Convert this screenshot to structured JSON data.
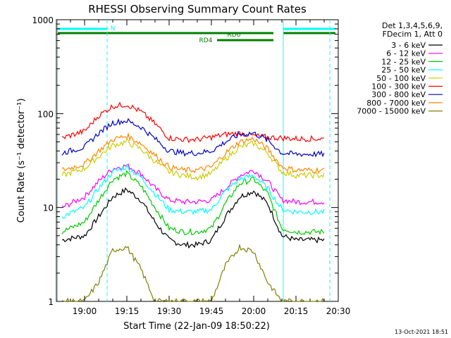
{
  "chart_data": {
    "type": "line",
    "title": "RHESSI Observing Summary Count Rates",
    "xlabel": "Start Time (22-Jan-09 18:50:22)",
    "ylabel": "Count Rate (s⁻¹ detector⁻¹)",
    "yscale": "log",
    "ylim": [
      1,
      1000
    ],
    "xlim": [
      "18:50",
      "20:30"
    ],
    "xticks": [
      "19:00",
      "19:15",
      "19:30",
      "19:45",
      "20:00",
      "20:15",
      "20:30"
    ],
    "yticks": [
      "1",
      "10",
      "100",
      "1000"
    ],
    "legend": {
      "header1": "Det 1,3,4,5,6,9,",
      "header2": "FDecim 1, Att 0"
    },
    "series": [
      {
        "name": "3 - 6 keV",
        "color": "#000000",
        "x": [
          "18:52",
          "19:00",
          "19:05",
          "19:10",
          "19:15",
          "19:20",
          "19:25",
          "19:30",
          "19:35",
          "19:40",
          "19:45",
          "19:50",
          "19:55",
          "20:00",
          "20:05",
          "20:10",
          "20:15",
          "20:20",
          "20:25"
        ],
        "y": [
          4.5,
          5,
          8,
          13,
          15.5,
          12,
          7,
          4.5,
          4,
          4,
          4.5,
          8,
          13,
          15,
          11,
          5,
          4.5,
          4.5,
          4.5
        ]
      },
      {
        "name": "6 - 12 keV",
        "color": "#ff00ff",
        "x": [
          "18:52",
          "19:00",
          "19:05",
          "19:10",
          "19:15",
          "19:20",
          "19:25",
          "19:30",
          "19:35",
          "19:40",
          "19:45",
          "19:50",
          "19:55",
          "20:00",
          "20:05",
          "20:10",
          "20:15",
          "20:20",
          "20:25"
        ],
        "y": [
          10,
          13,
          19,
          26,
          28,
          23,
          16,
          12,
          11.5,
          11.5,
          12,
          16,
          22,
          25,
          19,
          12,
          11.5,
          11.5,
          11.5
        ]
      },
      {
        "name": "12 - 25 keV",
        "color": "#00cc00",
        "x": [
          "18:52",
          "19:00",
          "19:05",
          "19:10",
          "19:15",
          "19:20",
          "19:25",
          "19:30",
          "19:35",
          "19:40",
          "19:45",
          "19:50",
          "19:55",
          "20:00",
          "20:05",
          "20:10",
          "20:15",
          "20:20",
          "20:25"
        ],
        "y": [
          5.5,
          7,
          12,
          20,
          23,
          17,
          10,
          6,
          5.5,
          5.5,
          6,
          11,
          18,
          20,
          14,
          6,
          5.5,
          5.5,
          5.5
        ]
      },
      {
        "name": "25 - 50 keV",
        "color": "#00ffff",
        "x": [
          "18:52",
          "19:00",
          "19:05",
          "19:10",
          "19:15",
          "19:20",
          "19:25",
          "19:30",
          "19:35",
          "19:40",
          "19:45",
          "19:50",
          "19:55",
          "20:00",
          "20:05",
          "20:10",
          "20:15",
          "20:20",
          "20:25"
        ],
        "y": [
          8,
          10,
          16,
          24,
          27,
          21,
          14,
          9.5,
          9,
          9,
          9.5,
          15,
          20,
          22,
          16,
          9.5,
          9,
          9,
          9
        ]
      },
      {
        "name": "50 - 100 keV",
        "color": "#cccc00",
        "x": [
          "18:52",
          "19:00",
          "19:05",
          "19:10",
          "19:15",
          "19:20",
          "19:25",
          "19:30",
          "19:35",
          "19:40",
          "19:45",
          "19:50",
          "19:55",
          "20:00",
          "20:05",
          "20:10",
          "20:15",
          "20:20",
          "20:25"
        ],
        "y": [
          22,
          26,
          35,
          46,
          50,
          42,
          31,
          24,
          22,
          21,
          23,
          33,
          44,
          48,
          38,
          24,
          22,
          22,
          22
        ]
      },
      {
        "name": "100 - 300 keV",
        "color": "#ff0000",
        "x": [
          "18:52",
          "19:00",
          "19:05",
          "19:10",
          "19:15",
          "19:20",
          "19:25",
          "19:30",
          "19:35",
          "19:40",
          "19:45",
          "19:50",
          "19:55",
          "20:00",
          "20:05",
          "20:10",
          "20:15",
          "20:20",
          "20:25"
        ],
        "y": [
          55,
          65,
          95,
          120,
          125,
          105,
          78,
          55,
          53,
          53,
          56,
          60,
          62,
          58,
          56,
          55,
          54,
          54,
          54
        ]
      },
      {
        "name": "300 - 800 keV",
        "color": "#0000cc",
        "x": [
          "18:52",
          "19:00",
          "19:05",
          "19:10",
          "19:15",
          "19:20",
          "19:25",
          "19:30",
          "19:35",
          "19:40",
          "19:45",
          "19:50",
          "19:55",
          "20:00",
          "20:05",
          "20:10",
          "20:15",
          "20:20",
          "20:25"
        ],
        "y": [
          38,
          44,
          62,
          80,
          84,
          72,
          54,
          40,
          38,
          38,
          40,
          50,
          60,
          62,
          52,
          38,
          37,
          37,
          37
        ]
      },
      {
        "name": "800 - 7000 keV",
        "color": "#ff8800",
        "x": [
          "18:52",
          "19:00",
          "19:05",
          "19:10",
          "19:15",
          "19:20",
          "19:25",
          "19:30",
          "19:35",
          "19:40",
          "19:45",
          "19:50",
          "19:55",
          "20:00",
          "20:05",
          "20:10",
          "20:15",
          "20:20",
          "20:25"
        ],
        "y": [
          25,
          29,
          40,
          53,
          58,
          48,
          36,
          27,
          25,
          25,
          27,
          38,
          50,
          54,
          42,
          27,
          25,
          25,
          25
        ]
      },
      {
        "name": "7000 - 15000 keV",
        "color": "#808000",
        "x": [
          "18:52",
          "19:00",
          "19:05",
          "19:10",
          "19:15",
          "19:20",
          "19:25",
          "19:30",
          "19:35",
          "19:40",
          "19:45",
          "19:50",
          "19:55",
          "20:00",
          "20:05",
          "20:10",
          "20:15",
          "20:20",
          "20:25"
        ],
        "y": [
          1,
          1,
          1.6,
          3.5,
          3.8,
          2.2,
          1,
          1,
          1,
          1,
          1,
          2.4,
          3.8,
          3.4,
          1.6,
          1,
          1,
          1,
          1
        ]
      }
    ],
    "flags": [
      {
        "label": "N",
        "color": "#00ffff"
      },
      {
        "label": "RD0",
        "color": "#008000"
      },
      {
        "label": "RD4",
        "color": "#008000"
      }
    ],
    "footer": "13-Oct-2021 18:51"
  }
}
